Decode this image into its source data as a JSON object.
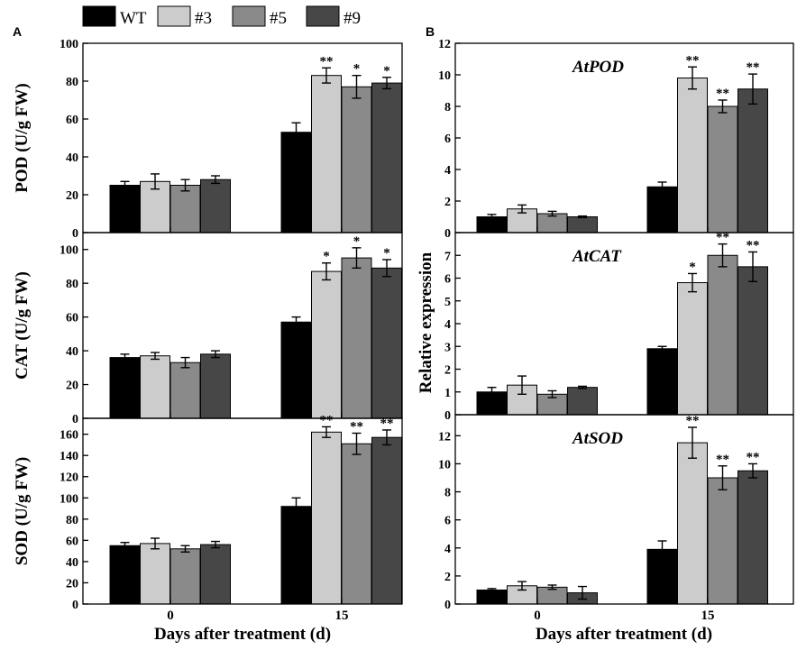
{
  "figure": {
    "legend": [
      {
        "name": "WT",
        "color": "#000000"
      },
      {
        "name": "#3",
        "color": "#cccccc"
      },
      {
        "name": "#5",
        "color": "#8a8a8a"
      },
      {
        "name": "#9",
        "color": "#474747"
      }
    ]
  },
  "chart_data": [
    {
      "panel": "A",
      "type": "bar",
      "title": "",
      "categories": [
        "0",
        "15"
      ],
      "xlabel": "",
      "ylabel": "POD (U/g FW)",
      "ylim": [
        0,
        100
      ],
      "yticks": [
        0,
        20,
        40,
        60,
        80,
        100
      ],
      "series": [
        {
          "name": "WT",
          "values": [
            25,
            53
          ],
          "errors": [
            2,
            5
          ]
        },
        {
          "name": "#3",
          "values": [
            27,
            83
          ],
          "errors": [
            4,
            4
          ]
        },
        {
          "name": "#5",
          "values": [
            25,
            77
          ],
          "errors": [
            3,
            6
          ]
        },
        {
          "name": "#9",
          "values": [
            28,
            79
          ],
          "errors": [
            2,
            3
          ]
        }
      ],
      "significance": [
        [
          "",
          "",
          "",
          ""
        ],
        [
          "",
          "**",
          "*",
          "*"
        ]
      ]
    },
    {
      "panel": "",
      "type": "bar",
      "title": "",
      "categories": [
        "0",
        "15"
      ],
      "xlabel": "",
      "ylabel": "CAT (U/g FW)",
      "ylim": [
        0,
        110
      ],
      "yticks": [
        0,
        20,
        40,
        60,
        80,
        100
      ],
      "series": [
        {
          "name": "WT",
          "values": [
            36,
            57
          ],
          "errors": [
            2,
            3
          ]
        },
        {
          "name": "#3",
          "values": [
            37,
            87
          ],
          "errors": [
            2,
            5
          ]
        },
        {
          "name": "#5",
          "values": [
            33,
            95
          ],
          "errors": [
            3,
            6
          ]
        },
        {
          "name": "#9",
          "values": [
            38,
            89
          ],
          "errors": [
            2,
            5
          ]
        }
      ],
      "significance": [
        [
          "",
          "",
          "",
          ""
        ],
        [
          "",
          "*",
          "*",
          "*"
        ]
      ]
    },
    {
      "panel": "",
      "type": "bar",
      "title": "",
      "categories": [
        "0",
        "15"
      ],
      "xlabel": "Days after treatment (d)",
      "ylabel": "SOD (U/g FW)",
      "ylim": [
        0,
        175
      ],
      "yticks": [
        0,
        20,
        40,
        60,
        80,
        100,
        120,
        140,
        160
      ],
      "series": [
        {
          "name": "WT",
          "values": [
            55,
            92
          ],
          "errors": [
            3,
            8
          ]
        },
        {
          "name": "#3",
          "values": [
            57,
            162
          ],
          "errors": [
            5,
            5
          ]
        },
        {
          "name": "#5",
          "values": [
            52,
            151
          ],
          "errors": [
            3,
            10
          ]
        },
        {
          "name": "#9",
          "values": [
            56,
            157
          ],
          "errors": [
            3,
            7
          ]
        }
      ],
      "significance": [
        [
          "",
          "",
          "",
          ""
        ],
        [
          "",
          "**",
          "**",
          "**"
        ]
      ]
    },
    {
      "panel": "B",
      "type": "bar",
      "title": "AtPOD",
      "categories": [
        "0",
        "15"
      ],
      "xlabel": "",
      "ylabel": "Relative expression",
      "ylim": [
        0,
        12
      ],
      "yticks": [
        0,
        2,
        4,
        6,
        8,
        10,
        12
      ],
      "series": [
        {
          "name": "WT",
          "values": [
            1.0,
            2.9
          ],
          "errors": [
            0.15,
            0.3
          ]
        },
        {
          "name": "#3",
          "values": [
            1.5,
            9.8
          ],
          "errors": [
            0.25,
            0.7
          ]
        },
        {
          "name": "#5",
          "values": [
            1.2,
            8.0
          ],
          "errors": [
            0.15,
            0.4
          ]
        },
        {
          "name": "#9",
          "values": [
            1.0,
            9.1
          ],
          "errors": [
            0.05,
            0.95
          ]
        }
      ],
      "significance": [
        [
          "",
          "",
          "",
          ""
        ],
        [
          "",
          "**",
          "**",
          "**"
        ]
      ]
    },
    {
      "panel": "",
      "type": "bar",
      "title": "AtCAT",
      "categories": [
        "0",
        "15"
      ],
      "xlabel": "",
      "ylabel": "",
      "ylim": [
        0,
        8
      ],
      "yticks": [
        0,
        1,
        2,
        3,
        4,
        5,
        6,
        7
      ],
      "series": [
        {
          "name": "WT",
          "values": [
            1.0,
            2.9
          ],
          "errors": [
            0.2,
            0.1
          ]
        },
        {
          "name": "#3",
          "values": [
            1.3,
            5.8
          ],
          "errors": [
            0.4,
            0.4
          ]
        },
        {
          "name": "#5",
          "values": [
            0.9,
            7.0
          ],
          "errors": [
            0.15,
            0.5
          ]
        },
        {
          "name": "#9",
          "values": [
            1.2,
            6.5
          ],
          "errors": [
            0.05,
            0.65
          ]
        }
      ],
      "significance": [
        [
          "",
          "",
          "",
          ""
        ],
        [
          "",
          "*",
          "**",
          "**"
        ]
      ]
    },
    {
      "panel": "",
      "type": "bar",
      "title": "AtSOD",
      "categories": [
        "0",
        "15"
      ],
      "xlabel": "Days after treatment (d)",
      "ylabel": "",
      "ylim": [
        0,
        13.5
      ],
      "yticks": [
        0,
        2,
        4,
        6,
        8,
        10,
        12
      ],
      "series": [
        {
          "name": "WT",
          "values": [
            1.0,
            3.9
          ],
          "errors": [
            0.1,
            0.6
          ]
        },
        {
          "name": "#3",
          "values": [
            1.3,
            11.5
          ],
          "errors": [
            0.3,
            1.1
          ]
        },
        {
          "name": "#5",
          "values": [
            1.2,
            9.0
          ],
          "errors": [
            0.15,
            0.85
          ]
        },
        {
          "name": "#9",
          "values": [
            0.8,
            9.5
          ],
          "errors": [
            0.45,
            0.5
          ]
        }
      ],
      "significance": [
        [
          "",
          "",
          "",
          ""
        ],
        [
          "",
          "**",
          "**",
          "**"
        ]
      ]
    }
  ]
}
